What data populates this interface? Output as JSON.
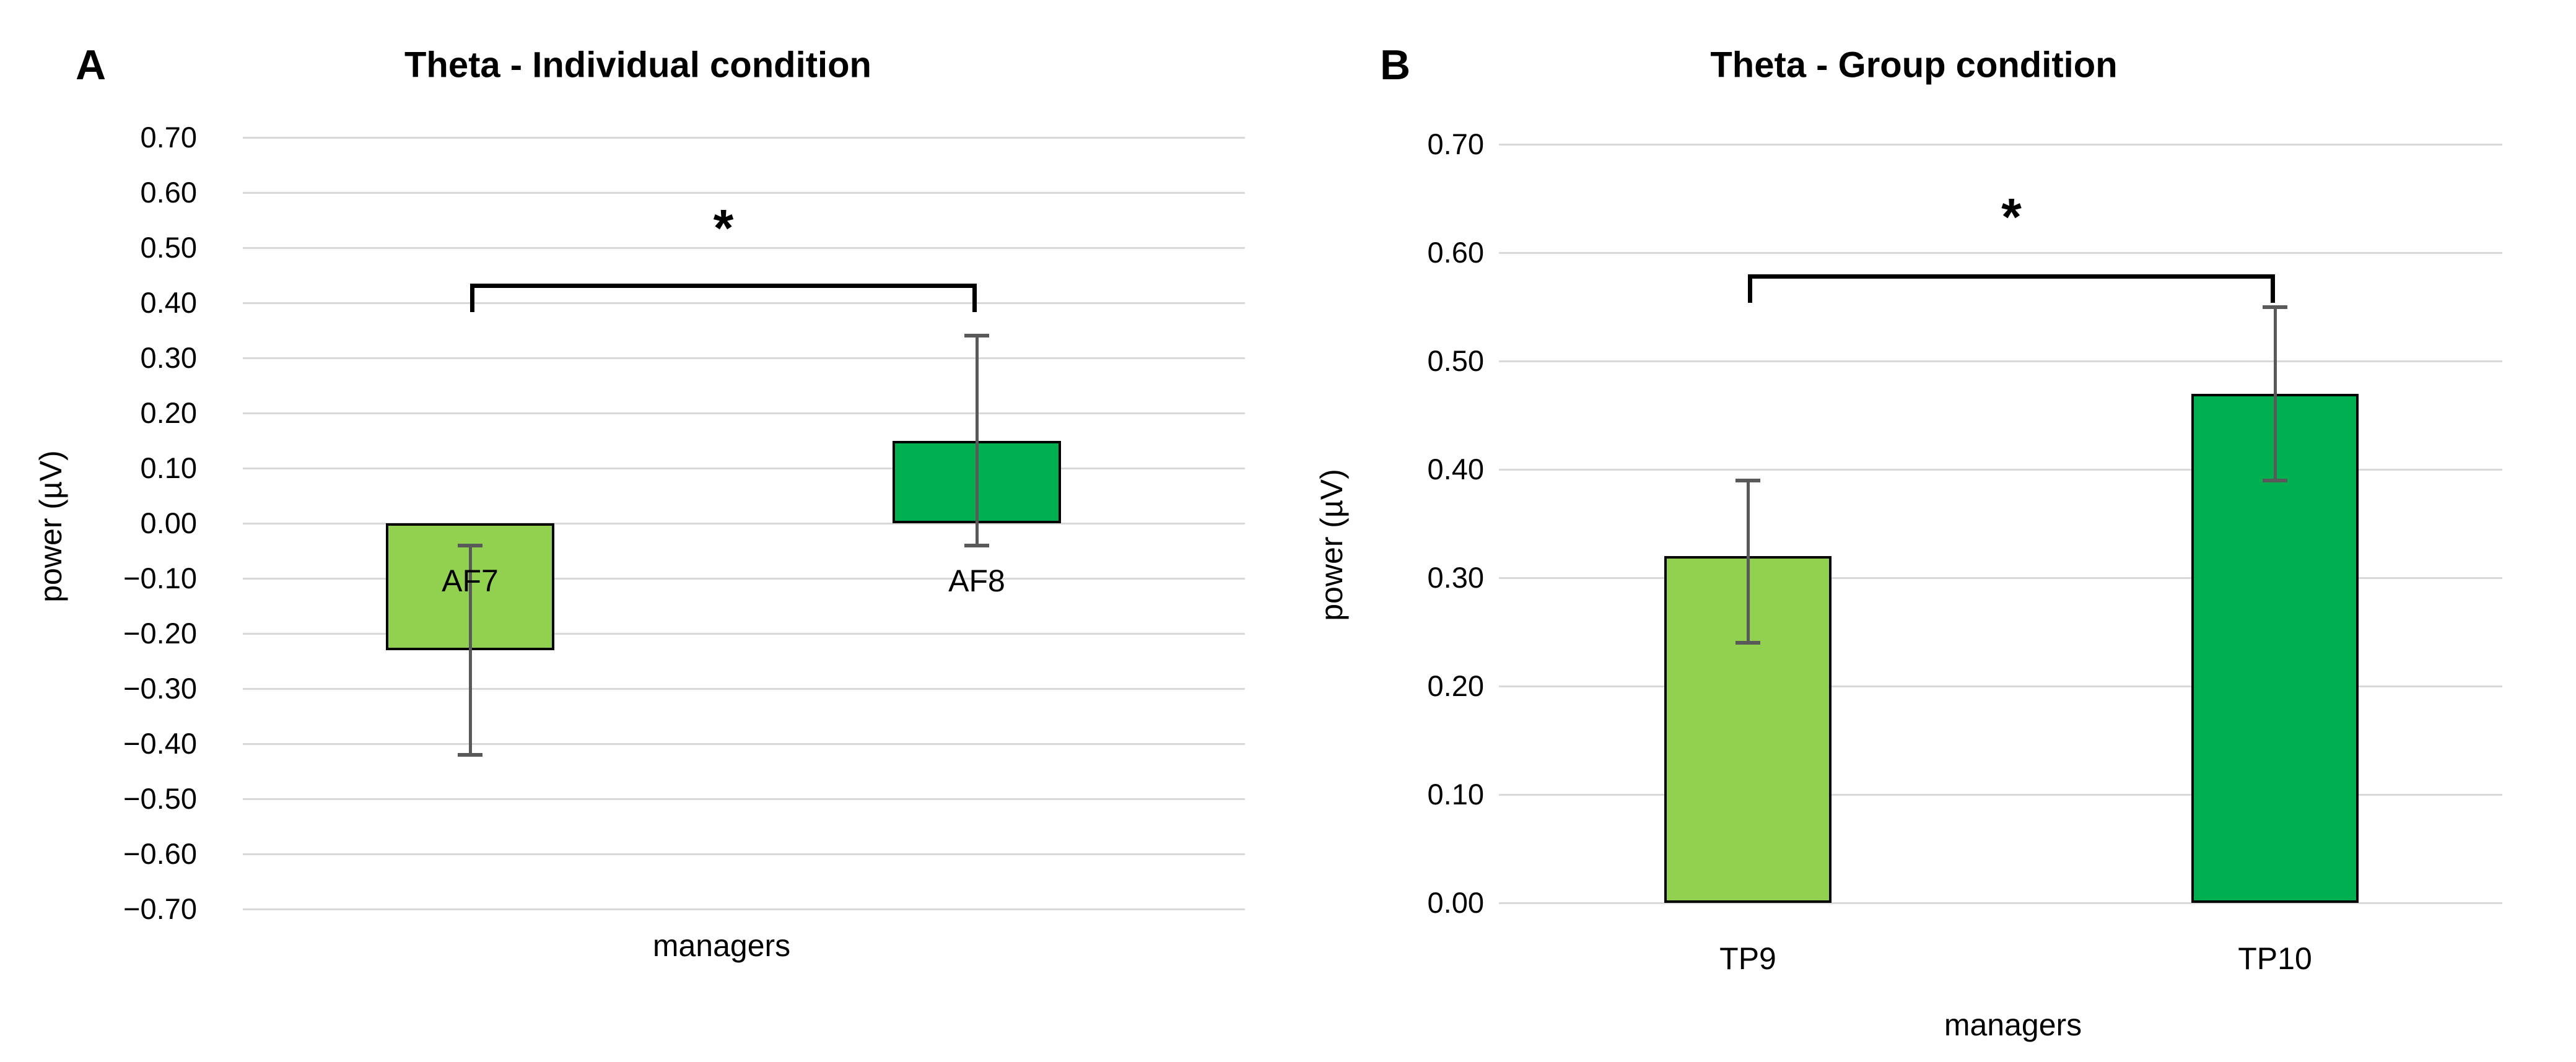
{
  "figure_bg": "#ffffff",
  "colors": {
    "light_green": "#92D050",
    "dark_green": "#00B050",
    "gridline": "#D9D9D9",
    "error_bar": "#595959",
    "bracket": "#000000",
    "text": "#000000"
  },
  "chart_data": [
    {
      "type": "bar",
      "panel_label": "A",
      "title": "Theta - Individual condition",
      "xlabel": "managers",
      "ylabel": "power (µV)",
      "ylim": [
        -0.7,
        0.7
      ],
      "ystep": 0.1,
      "grid": true,
      "y_ticks": [
        "0.70",
        "0.60",
        "0.50",
        "0.40",
        "0.30",
        "0.20",
        "0.10",
        "0.00",
        "−0.10",
        "−0.20",
        "−0.30",
        "−0.40",
        "−0.50",
        "−0.60",
        "−0.70"
      ],
      "categories": [
        "AF7",
        "AF8"
      ],
      "values": [
        -0.23,
        0.15
      ],
      "bar_colors": [
        "#92D050",
        "#00B050"
      ],
      "error_low": [
        -0.42,
        -0.04
      ],
      "error_high": [
        -0.04,
        0.34
      ],
      "significance": {
        "symbol": "*",
        "between": [
          "AF7",
          "AF8"
        ],
        "bar_y": 0.435,
        "star_y": 0.55
      }
    },
    {
      "type": "bar",
      "panel_label": "B",
      "title": "Theta - Group condition",
      "xlabel": "managers",
      "ylabel": "power (µV)",
      "ylim": [
        0.0,
        0.7
      ],
      "ystep": 0.1,
      "grid": true,
      "y_ticks": [
        "0.70",
        "0.60",
        "0.50",
        "0.40",
        "0.30",
        "0.20",
        "0.10",
        "0.00"
      ],
      "categories": [
        "TP9",
        "TP10"
      ],
      "values": [
        0.32,
        0.47
      ],
      "bar_colors": [
        "#92D050",
        "#00B050"
      ],
      "error_low": [
        0.24,
        0.39
      ],
      "error_high": [
        0.39,
        0.55
      ],
      "significance": {
        "symbol": "*",
        "between": [
          "TP9",
          "TP10"
        ],
        "bar_y": 0.58,
        "star_y": 0.64
      }
    }
  ]
}
